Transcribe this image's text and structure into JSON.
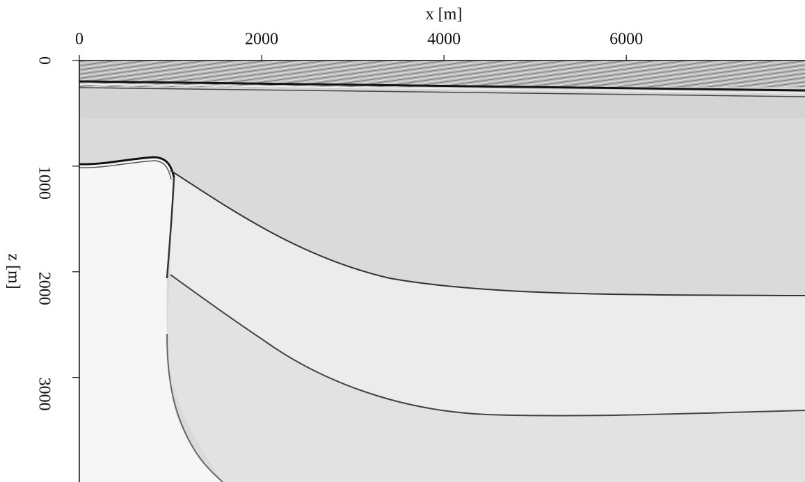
{
  "chart_data": {
    "type": "image",
    "xlabel": "x [m]",
    "ylabel": "z [m]",
    "xlim": [
      0,
      7960
    ],
    "xticks": [
      0,
      2000,
      4000,
      6000
    ],
    "ylim": [
      0,
      3990
    ],
    "yticks": [
      0,
      1000,
      2000,
      3000
    ]
  }
}
